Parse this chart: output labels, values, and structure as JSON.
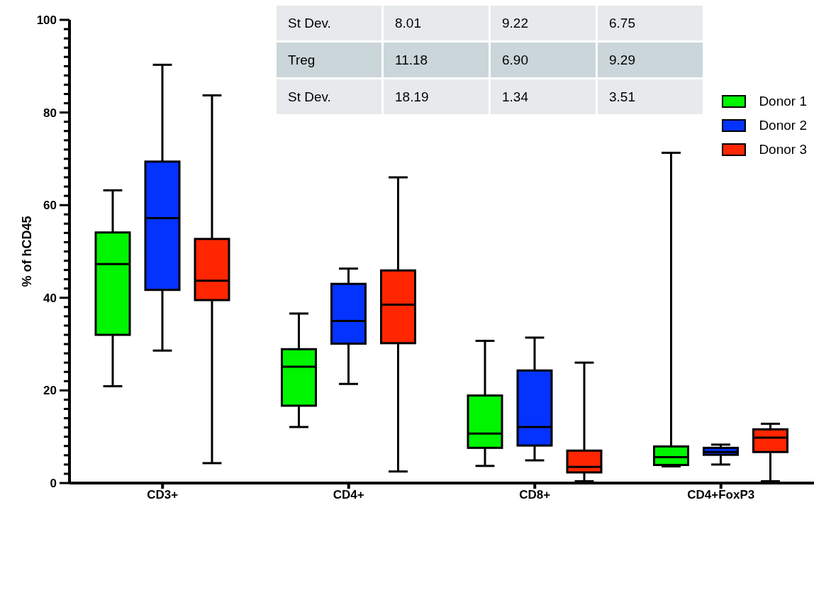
{
  "chart_data": {
    "type": "box",
    "ylabel": "% of hCD45",
    "categories": [
      "CD3+",
      "CD4+",
      "CD8+",
      "CD4+FoxP3"
    ],
    "series": [
      {
        "name": "Donor 1",
        "color": "#00f500",
        "boxes": [
          {
            "low": 20.9,
            "q1": 32.0,
            "median": 47.3,
            "q3": 54.1,
            "high": 63.2
          },
          {
            "low": 12.1,
            "q1": 16.7,
            "median": 25.1,
            "q3": 28.9,
            "high": 36.6
          },
          {
            "low": 3.7,
            "q1": 7.6,
            "median": 10.7,
            "q3": 18.9,
            "high": 30.7
          },
          {
            "low": 3.6,
            "q1": 3.9,
            "median": 5.6,
            "q3": 7.9,
            "high": 71.3
          }
        ]
      },
      {
        "name": "Donor 2",
        "color": "#0433ff",
        "boxes": [
          {
            "low": 28.6,
            "q1": 41.7,
            "median": 57.2,
            "q3": 69.4,
            "high": 90.3
          },
          {
            "low": 21.4,
            "q1": 30.1,
            "median": 35.0,
            "q3": 43.0,
            "high": 46.3
          },
          {
            "low": 4.9,
            "q1": 8.1,
            "median": 12.1,
            "q3": 24.3,
            "high": 31.4
          },
          {
            "low": 4.0,
            "q1": 6.1,
            "median": 6.7,
            "q3": 7.6,
            "high": 8.3
          }
        ]
      },
      {
        "name": "Donor 3",
        "color": "#ff2600",
        "boxes": [
          {
            "low": 4.3,
            "q1": 39.5,
            "median": 43.7,
            "q3": 52.7,
            "high": 83.7
          },
          {
            "low": 2.5,
            "q1": 30.2,
            "median": 38.5,
            "q3": 45.9,
            "high": 66.0
          },
          {
            "low": 0.4,
            "q1": 2.3,
            "median": 3.5,
            "q3": 7.0,
            "high": 26.0
          },
          {
            "low": 0.4,
            "q1": 6.7,
            "median": 9.8,
            "q3": 11.6,
            "high": 12.8
          }
        ]
      }
    ],
    "ylim": [
      0,
      100
    ],
    "yticks": [
      0,
      {
        "value": 2,
        "label": null
      },
      {
        "value": 4,
        "label": null
      },
      {
        "value": 6,
        "label": null
      },
      {
        "value": 8,
        "label": null
      },
      {
        "value": 10,
        "label": null
      },
      {
        "value": 12,
        "label": null
      },
      {
        "value": 14,
        "label": null
      },
      {
        "value": 16,
        "label": null
      },
      {
        "value": 18,
        "label": null
      },
      20,
      {
        "value": 22,
        "label": null
      },
      {
        "value": 24,
        "label": null
      },
      {
        "value": 26,
        "label": null
      },
      {
        "value": 28,
        "label": null
      },
      {
        "value": 30,
        "label": null
      },
      {
        "value": 32,
        "label": null
      },
      {
        "value": 34,
        "label": null
      },
      {
        "value": 36,
        "label": null
      },
      {
        "value": 38,
        "label": null
      },
      40,
      {
        "value": 42,
        "label": null
      },
      {
        "value": 44,
        "label": null
      },
      {
        "value": 46,
        "label": null
      },
      {
        "value": 48,
        "label": null
      },
      {
        "value": 50,
        "label": null
      },
      {
        "value": 52,
        "label": null
      },
      {
        "value": 54,
        "label": null
      },
      {
        "value": 56,
        "label": null
      },
      {
        "value": 58,
        "label": null
      },
      60,
      {
        "value": 62,
        "label": null
      },
      {
        "value": 64,
        "label": null
      },
      {
        "value": 66,
        "label": null
      },
      {
        "value": 68,
        "label": null
      },
      {
        "value": 70,
        "label": null
      },
      {
        "value": 72,
        "label": null
      },
      {
        "value": 74,
        "label": null
      },
      {
        "value": 76,
        "label": null
      },
      {
        "value": 78,
        "label": null
      },
      80,
      {
        "value": 82,
        "label": null
      },
      {
        "value": 84,
        "label": null
      },
      {
        "value": 86,
        "label": null
      },
      {
        "value": 88,
        "label": null
      },
      {
        "value": 90,
        "label": null
      },
      {
        "value": 92,
        "label": null
      },
      {
        "value": 94,
        "label": null
      },
      {
        "value": 96,
        "label": null
      },
      {
        "value": 98,
        "label": null
      },
      100
    ],
    "grid": false,
    "legend": "top right",
    "annotations": [
      "St Dev.",
      "8.01",
      "9.22",
      "6.75",
      "Treg",
      "11.18",
      "6.90",
      "9.29",
      "St Dev.",
      "18.19",
      "1.34",
      "3.51"
    ]
  }
}
